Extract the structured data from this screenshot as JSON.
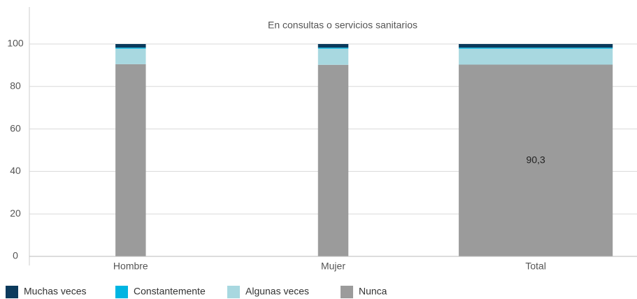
{
  "chart_data": {
    "type": "stacked_bar",
    "title": "En consultas o servicios sanitarios",
    "categories": [
      "Hombre",
      "Mujer",
      "Total"
    ],
    "series": [
      {
        "name": "Muchas veces",
        "color": "#0b3a5c",
        "values": [
          1.7,
          1.7,
          1.7
        ]
      },
      {
        "name": "Constantemente",
        "color": "#00b5e2",
        "values": [
          0.5,
          0.5,
          0.5
        ]
      },
      {
        "name": "Algunas veces",
        "color": "#a8d8e0",
        "values": [
          7.3,
          7.6,
          7.5
        ]
      },
      {
        "name": "Nunca",
        "color": "#9b9b9b",
        "values": [
          90.5,
          90.2,
          90.3
        ],
        "value_labels": [
          null,
          null,
          "90,3"
        ]
      }
    ],
    "ylim": [
      0,
      100
    ],
    "yticks": [
      0,
      20,
      40,
      60,
      80,
      100
    ],
    "grid": true
  }
}
